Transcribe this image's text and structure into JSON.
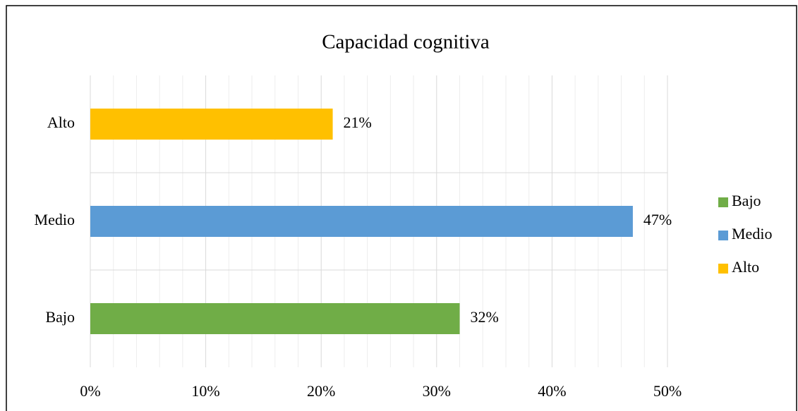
{
  "chart_data": {
    "type": "barh",
    "title": "Capacidad cognitiva",
    "categories": [
      "Bajo",
      "Medio",
      "Alto"
    ],
    "values": [
      32,
      47,
      21
    ],
    "value_labels": [
      "32%",
      "47%",
      "21%"
    ],
    "colors": [
      "#70ad47",
      "#5b9bd5",
      "#ffc000"
    ],
    "xlim": [
      0,
      50
    ],
    "xticks": [
      {
        "value": 0,
        "label": "0%"
      },
      {
        "value": 10,
        "label": "10%"
      },
      {
        "value": 20,
        "label": "20%"
      },
      {
        "value": 30,
        "label": "30%"
      },
      {
        "value": 40,
        "label": "40%"
      },
      {
        "value": 50,
        "label": "50%"
      }
    ],
    "xminor_ticks": [
      2,
      4,
      6,
      8,
      12,
      14,
      16,
      18,
      22,
      24,
      26,
      28,
      32,
      34,
      36,
      38,
      42,
      44,
      46,
      48
    ],
    "grid": true,
    "legend": "right"
  }
}
